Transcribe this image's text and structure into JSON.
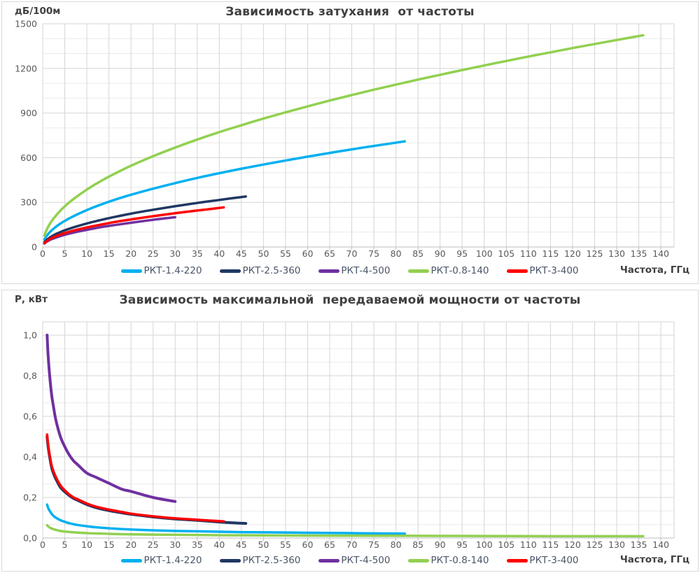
{
  "colors": {
    "title_text": "#404040",
    "tick_text": "#595959",
    "legend_text": "#4a5568",
    "grid_minor": "#eaeaea",
    "grid_major": "#d6d6d6",
    "axis_line": "#bdbdbd",
    "panel_border": "#d9d9d9",
    "series_cyan": "#00B0F0",
    "series_navy": "#1F3864",
    "series_purple": "#7030A0",
    "series_green": "#92D050",
    "series_red": "#FF0000"
  },
  "chart_data": [
    {
      "type": "line",
      "title": "Зависимость затухания  от частоты",
      "y_unit_label": "дБ/100м",
      "xlabel": "Частота, ГГц",
      "legend_position": "bottom",
      "grid": true,
      "xlim": [
        0,
        143
      ],
      "ylim": [
        0,
        1500
      ],
      "x_ticks": [
        0,
        5,
        10,
        15,
        20,
        25,
        30,
        35,
        40,
        45,
        50,
        55,
        60,
        65,
        70,
        75,
        80,
        85,
        90,
        95,
        100,
        105,
        110,
        115,
        120,
        125,
        130,
        135,
        140
      ],
      "y_tick_values": [
        0,
        300,
        600,
        900,
        1200,
        1500
      ],
      "y_tick_labels": [
        "0",
        "300",
        "600",
        "900",
        "1200",
        "1500"
      ],
      "y_minor_step": 100,
      "series": [
        {
          "id": "rkt-1-4-220",
          "name": "РКТ-1.4-220",
          "color": "#00B0F0",
          "width": 3.5,
          "points": [
            [
              0.4,
              50
            ],
            [
              0.7,
              66
            ],
            [
              1,
              78
            ],
            [
              1.5,
              96
            ],
            [
              2,
              111
            ],
            [
              3,
              136
            ],
            [
              4,
              157
            ],
            [
              5,
              175
            ],
            [
              7,
              207
            ],
            [
              10,
              248
            ],
            [
              13,
              283
            ],
            [
              16,
              314
            ],
            [
              20,
              351
            ],
            [
              25,
              392
            ],
            [
              30,
              429
            ],
            [
              35,
              464
            ],
            [
              40,
              496
            ],
            [
              45,
              526
            ],
            [
              50,
              554
            ],
            [
              55,
              581
            ],
            [
              60,
              607
            ],
            [
              65,
              632
            ],
            [
              70,
              656
            ],
            [
              75,
              679
            ],
            [
              80,
              701
            ],
            [
              82,
              710
            ]
          ]
        },
        {
          "id": "rkt-2-5-360",
          "name": "РКТ-2.5-360",
          "color": "#1F3864",
          "width": 3.5,
          "points": [
            [
              0.4,
              32
            ],
            [
              0.7,
              42
            ],
            [
              1,
              50
            ],
            [
              1.5,
              61
            ],
            [
              2,
              71
            ],
            [
              3,
              87
            ],
            [
              4,
              100
            ],
            [
              5,
              112
            ],
            [
              7,
              132
            ],
            [
              10,
              158
            ],
            [
              13,
              180
            ],
            [
              16,
              200
            ],
            [
              20,
              224
            ],
            [
              25,
              250
            ],
            [
              30,
              274
            ],
            [
              35,
              296
            ],
            [
              40,
              316
            ],
            [
              43,
              328
            ],
            [
              46,
              339
            ]
          ]
        },
        {
          "id": "rkt-4-500",
          "name": "РКТ-4-500",
          "color": "#7030A0",
          "width": 3.5,
          "points": [
            [
              0.4,
              23
            ],
            [
              0.7,
              31
            ],
            [
              1,
              37
            ],
            [
              1.5,
              45
            ],
            [
              2,
              52
            ],
            [
              3,
              63
            ],
            [
              4,
              73
            ],
            [
              5,
              82
            ],
            [
              7,
              97
            ],
            [
              10,
              115
            ],
            [
              13,
              132
            ],
            [
              16,
              146
            ],
            [
              20,
              163
            ],
            [
              25,
              183
            ],
            [
              30,
              200
            ]
          ]
        },
        {
          "id": "rkt-0-8-140",
          "name": "РКТ-0.8-140",
          "color": "#92D050",
          "width": 3.5,
          "points": [
            [
              0.4,
              77
            ],
            [
              0.7,
              102
            ],
            [
              1,
              122
            ],
            [
              1.5,
              149
            ],
            [
              2,
              173
            ],
            [
              3,
              211
            ],
            [
              4,
              244
            ],
            [
              5,
              273
            ],
            [
              7,
              323
            ],
            [
              10,
              386
            ],
            [
              13,
              440
            ],
            [
              16,
              488
            ],
            [
              20,
              546
            ],
            [
              25,
              610
            ],
            [
              30,
              668
            ],
            [
              35,
              722
            ],
            [
              40,
              772
            ],
            [
              45,
              818
            ],
            [
              50,
              863
            ],
            [
              55,
              905
            ],
            [
              60,
              945
            ],
            [
              65,
              984
            ],
            [
              70,
              1021
            ],
            [
              75,
              1057
            ],
            [
              80,
              1091
            ],
            [
              85,
              1125
            ],
            [
              90,
              1157
            ],
            [
              95,
              1189
            ],
            [
              100,
              1220
            ],
            [
              105,
              1250
            ],
            [
              110,
              1280
            ],
            [
              115,
              1308
            ],
            [
              120,
              1337
            ],
            [
              125,
              1364
            ],
            [
              130,
              1391
            ],
            [
              136,
              1423
            ]
          ]
        },
        {
          "id": "rkt-3-400",
          "name": "РКТ-3-400",
          "color": "#FF0000",
          "width": 3.5,
          "points": [
            [
              0.4,
              26
            ],
            [
              0.7,
              35
            ],
            [
              1,
              41
            ],
            [
              1.5,
              51
            ],
            [
              2,
              59
            ],
            [
              3,
              72
            ],
            [
              4,
              83
            ],
            [
              5,
              93
            ],
            [
              7,
              110
            ],
            [
              10,
              131
            ],
            [
              13,
              149
            ],
            [
              16,
              166
            ],
            [
              20,
              185
            ],
            [
              25,
              207
            ],
            [
              30,
              227
            ],
            [
              35,
              245
            ],
            [
              38,
              255
            ],
            [
              41,
              266
            ]
          ]
        }
      ]
    },
    {
      "type": "line",
      "title": "Зависимость максимальной  передаваемой мощности от частоты",
      "y_unit_label": "Р, кВт",
      "xlabel": "Частота, ГГц",
      "legend_position": "bottom",
      "grid": true,
      "xlim": [
        0,
        143
      ],
      "ylim": [
        0,
        1.0655
      ],
      "x_ticks": [
        0,
        5,
        10,
        15,
        20,
        25,
        30,
        35,
        40,
        45,
        50,
        55,
        60,
        65,
        70,
        75,
        80,
        85,
        90,
        95,
        100,
        105,
        110,
        115,
        120,
        125,
        130,
        135,
        140
      ],
      "y_tick_values": [
        0,
        0.2,
        0.4,
        0.6,
        0.8,
        1.0
      ],
      "y_tick_labels": [
        "0,0",
        "0,2",
        "0,4",
        "0,6",
        "0,8",
        "1,0"
      ],
      "y_minor_step": 0.066667,
      "series": [
        {
          "id": "rkt-1-4-220",
          "name": "РКТ-1.4-220",
          "color": "#00B0F0",
          "width": 3.5,
          "points": [
            [
              1,
              0.165
            ],
            [
              1.2,
              0.15
            ],
            [
              1.5,
              0.137
            ],
            [
              2,
              0.12
            ],
            [
              2.5,
              0.108
            ],
            [
              3,
              0.1
            ],
            [
              4,
              0.088
            ],
            [
              5,
              0.08
            ],
            [
              6,
              0.073
            ],
            [
              7,
              0.068
            ],
            [
              8,
              0.064
            ],
            [
              10,
              0.058
            ],
            [
              12,
              0.053
            ],
            [
              15,
              0.048
            ],
            [
              18,
              0.044
            ],
            [
              20,
              0.042
            ],
            [
              25,
              0.038
            ],
            [
              30,
              0.035
            ],
            [
              35,
              0.033
            ],
            [
              40,
              0.031
            ],
            [
              45,
              0.029
            ],
            [
              50,
              0.028
            ],
            [
              55,
              0.027
            ],
            [
              60,
              0.026
            ],
            [
              65,
              0.025
            ],
            [
              70,
              0.024
            ],
            [
              75,
              0.023
            ],
            [
              80,
              0.022
            ],
            [
              82,
              0.022
            ]
          ]
        },
        {
          "id": "rkt-2-5-360",
          "name": "РКТ-2.5-360",
          "color": "#1F3864",
          "width": 4,
          "points": [
            [
              1,
              0.5
            ],
            [
              1.2,
              0.455
            ],
            [
              1.5,
              0.41
            ],
            [
              2,
              0.35
            ],
            [
              2.5,
              0.315
            ],
            [
              3,
              0.29
            ],
            [
              4,
              0.25
            ],
            [
              5,
              0.228
            ],
            [
              6,
              0.21
            ],
            [
              7,
              0.195
            ],
            [
              8,
              0.185
            ],
            [
              10,
              0.165
            ],
            [
              12,
              0.15
            ],
            [
              15,
              0.135
            ],
            [
              18,
              0.124
            ],
            [
              20,
              0.117
            ],
            [
              25,
              0.104
            ],
            [
              30,
              0.094
            ],
            [
              35,
              0.087
            ],
            [
              40,
              0.079
            ],
            [
              43,
              0.075
            ],
            [
              46,
              0.072
            ]
          ]
        },
        {
          "id": "rkt-4-500",
          "name": "РКТ-4-500",
          "color": "#7030A0",
          "width": 4,
          "points": [
            [
              1,
              1.0
            ],
            [
              1.2,
              0.91
            ],
            [
              1.5,
              0.82
            ],
            [
              2,
              0.71
            ],
            [
              2.5,
              0.64
            ],
            [
              3,
              0.58
            ],
            [
              4,
              0.5
            ],
            [
              5,
              0.45
            ],
            [
              6,
              0.41
            ],
            [
              7,
              0.38
            ],
            [
              8,
              0.36
            ],
            [
              10,
              0.32
            ],
            [
              12,
              0.3
            ],
            [
              15,
              0.27
            ],
            [
              18,
              0.24
            ],
            [
              20,
              0.23
            ],
            [
              25,
              0.2
            ],
            [
              30,
              0.18
            ]
          ]
        },
        {
          "id": "rkt-0-8-140",
          "name": "РКТ-0.8-140",
          "color": "#92D050",
          "width": 3.5,
          "points": [
            [
              1,
              0.063
            ],
            [
              1.5,
              0.053
            ],
            [
              2,
              0.047
            ],
            [
              3,
              0.04
            ],
            [
              4,
              0.035
            ],
            [
              5,
              0.032
            ],
            [
              7,
              0.028
            ],
            [
              10,
              0.024
            ],
            [
              13,
              0.022
            ],
            [
              16,
              0.02
            ],
            [
              20,
              0.018
            ],
            [
              25,
              0.017
            ],
            [
              30,
              0.016
            ],
            [
              35,
              0.015
            ],
            [
              40,
              0.014
            ],
            [
              50,
              0.013
            ],
            [
              60,
              0.012
            ],
            [
              70,
              0.0115
            ],
            [
              80,
              0.011
            ],
            [
              90,
              0.0105
            ],
            [
              100,
              0.01
            ],
            [
              110,
              0.0095
            ],
            [
              120,
              0.009
            ],
            [
              130,
              0.009
            ],
            [
              136,
              0.009
            ]
          ]
        },
        {
          "id": "rkt-3-400",
          "name": "РКТ-3-400",
          "color": "#FF0000",
          "width": 3.5,
          "points": [
            [
              1,
              0.51
            ],
            [
              1.2,
              0.465
            ],
            [
              1.5,
              0.42
            ],
            [
              2,
              0.36
            ],
            [
              2.5,
              0.325
            ],
            [
              3,
              0.3
            ],
            [
              4,
              0.26
            ],
            [
              5,
              0.235
            ],
            [
              6,
              0.215
            ],
            [
              7,
              0.2
            ],
            [
              8,
              0.19
            ],
            [
              10,
              0.17
            ],
            [
              12,
              0.155
            ],
            [
              15,
              0.14
            ],
            [
              18,
              0.128
            ],
            [
              20,
              0.12
            ],
            [
              25,
              0.107
            ],
            [
              30,
              0.097
            ],
            [
              35,
              0.09
            ],
            [
              38,
              0.086
            ],
            [
              41,
              0.082
            ]
          ]
        }
      ]
    }
  ]
}
